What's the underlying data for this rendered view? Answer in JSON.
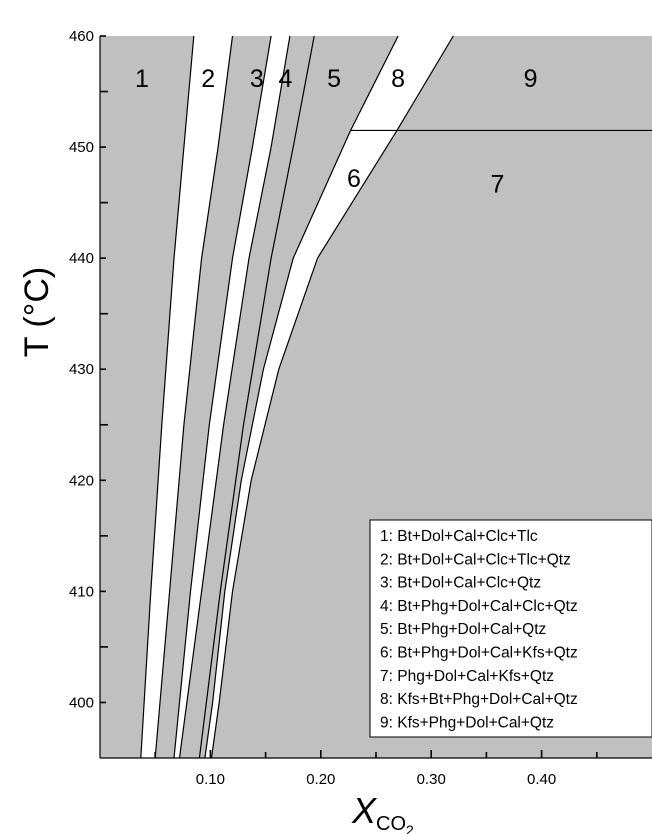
{
  "chart_data": {
    "type": "area",
    "xlabel_main": "X",
    "xlabel_sub": "CO",
    "xlabel_sub2": "2",
    "ylabel": "T (°C)",
    "xlim": [
      0,
      0.5
    ],
    "ylim": [
      395,
      460
    ],
    "x_ticks": [
      {
        "value": 0.1,
        "label": "0.10"
      },
      {
        "value": 0.2,
        "label": "0.20"
      },
      {
        "value": 0.3,
        "label": "0.30"
      },
      {
        "value": 0.4,
        "label": "0.40"
      }
    ],
    "y_ticks": [
      {
        "value": 400,
        "label": "400"
      },
      {
        "value": 410,
        "label": "410"
      },
      {
        "value": 420,
        "label": "420"
      },
      {
        "value": 430,
        "label": "430"
      },
      {
        "value": 440,
        "label": "440"
      },
      {
        "value": 450,
        "label": "450"
      },
      {
        "value": 460,
        "label": "460"
      }
    ],
    "field_colors": {
      "stable": "#c0c0c0",
      "unstable": "#ffffff"
    },
    "reaction_curves": [
      {
        "T": [
          395,
          410,
          425,
          440,
          450,
          460
        ],
        "x": [
          0.037,
          0.046,
          0.056,
          0.067,
          0.076,
          0.085
        ]
      },
      {
        "T": [
          395,
          410,
          425,
          440,
          450,
          460
        ],
        "x": [
          0.05,
          0.063,
          0.076,
          0.092,
          0.107,
          0.12
        ]
      },
      {
        "T": [
          395,
          410,
          425,
          440,
          450,
          460
        ],
        "x": [
          0.067,
          0.082,
          0.099,
          0.12,
          0.138,
          0.155
        ]
      },
      {
        "T": [
          395,
          410,
          425,
          440,
          450,
          460
        ],
        "x": [
          0.072,
          0.092,
          0.112,
          0.135,
          0.155,
          0.172
        ]
      },
      {
        "T": [
          395,
          410,
          425,
          440,
          450,
          460
        ],
        "x": [
          0.09,
          0.109,
          0.13,
          0.155,
          0.175,
          0.194
        ]
      },
      {
        "T": [
          395,
          400,
          410,
          420,
          430,
          440,
          451.5,
          460
        ],
        "x": [
          0.095,
          0.102,
          0.113,
          0.128,
          0.148,
          0.175,
          0.227,
          0.27
        ]
      },
      {
        "T": [
          395,
          400,
          410,
          420,
          430,
          440,
          451.5,
          460
        ],
        "x": [
          0.101,
          0.108,
          0.12,
          0.137,
          0.162,
          0.197,
          0.269,
          0.32
        ]
      }
    ],
    "boundary_line": {
      "T": 451.5,
      "x_start": 0.227,
      "x_end": 0.5
    },
    "white_bands": [
      [
        0,
        1
      ],
      [
        2,
        3
      ],
      [
        5,
        6
      ]
    ],
    "field_numbers": [
      {
        "label": "1",
        "x": 0.038,
        "T": 456
      },
      {
        "label": "2",
        "x": 0.098,
        "T": 456
      },
      {
        "label": "3",
        "x": 0.142,
        "T": 456
      },
      {
        "label": "4",
        "x": 0.168,
        "T": 456
      },
      {
        "label": "5",
        "x": 0.212,
        "T": 456
      },
      {
        "label": "8",
        "x": 0.27,
        "T": 456
      },
      {
        "label": "9",
        "x": 0.39,
        "T": 456
      },
      {
        "label": "6",
        "x": 0.23,
        "T": 447
      },
      {
        "label": "7",
        "x": 0.36,
        "T": 446.5
      }
    ],
    "legend": {
      "position": "bottom-right",
      "entries": [
        "1: Bt+Dol+Cal+Clc+Tlc",
        "2: Bt+Dol+Cal+Clc+Tlc+Qtz",
        "3: Bt+Dol+Cal+Clc+Qtz",
        "4: Bt+Phg+Dol+Cal+Clc+Qtz",
        "5: Bt+Phg+Dol+Cal+Qtz",
        "6: Bt+Phg+Dol+Cal+Kfs+Qtz",
        "7: Phg+Dol+Cal+Kfs+Qtz",
        "8: Kfs+Bt+Phg+Dol+Cal+Qtz",
        "9: Kfs+Phg+Dol+Cal+Qtz"
      ]
    }
  }
}
